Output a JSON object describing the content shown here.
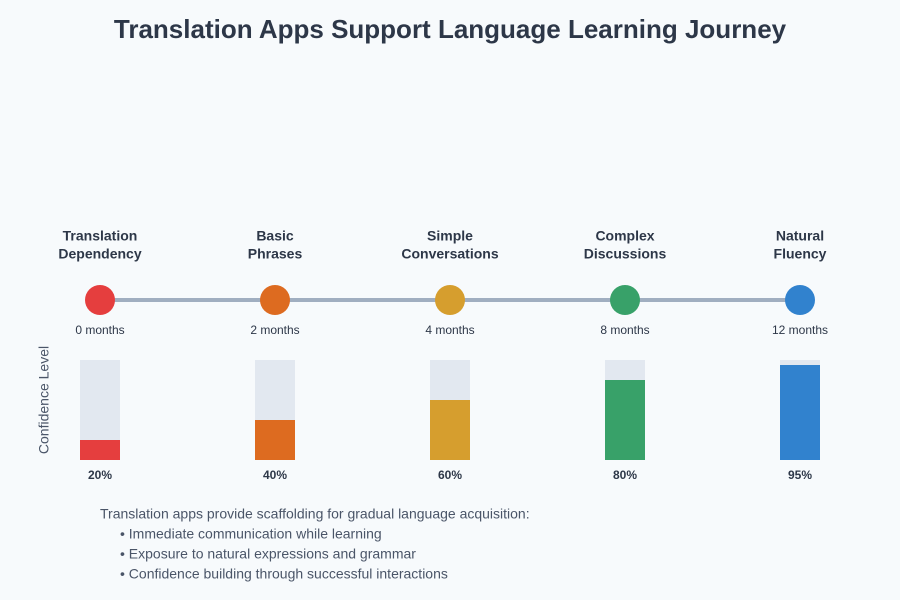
{
  "title": "Translation Apps Support Language Learning Journey",
  "y_axis_label": "Confidence Level",
  "confidence_lim": [
    0,
    100
  ],
  "stages": [
    {
      "label": [
        "Translation",
        "Dependency"
      ],
      "time": "0 months",
      "color": "#e53e3e",
      "confidence": 20,
      "confidence_label": "20%"
    },
    {
      "label": [
        "Basic",
        "Phrases"
      ],
      "time": "2 months",
      "color": "#dd6b20",
      "confidence": 40,
      "confidence_label": "40%"
    },
    {
      "label": [
        "Simple",
        "Conversations"
      ],
      "time": "4 months",
      "color": "#d69e2e",
      "confidence": 60,
      "confidence_label": "60%"
    },
    {
      "label": [
        "Complex",
        "Discussions"
      ],
      "time": "8 months",
      "color": "#38a169",
      "confidence": 80,
      "confidence_label": "80%"
    },
    {
      "label": [
        "Natural",
        "Fluency"
      ],
      "time": "12 months",
      "color": "#3182ce",
      "confidence": 95,
      "confidence_label": "95%"
    }
  ],
  "note": {
    "intro": "Translation apps provide scaffolding for gradual language acquisition:",
    "bullets": [
      "• Immediate communication while learning",
      "• Exposure to natural expressions and grammar",
      "• Confidence building through successful interactions"
    ]
  }
}
